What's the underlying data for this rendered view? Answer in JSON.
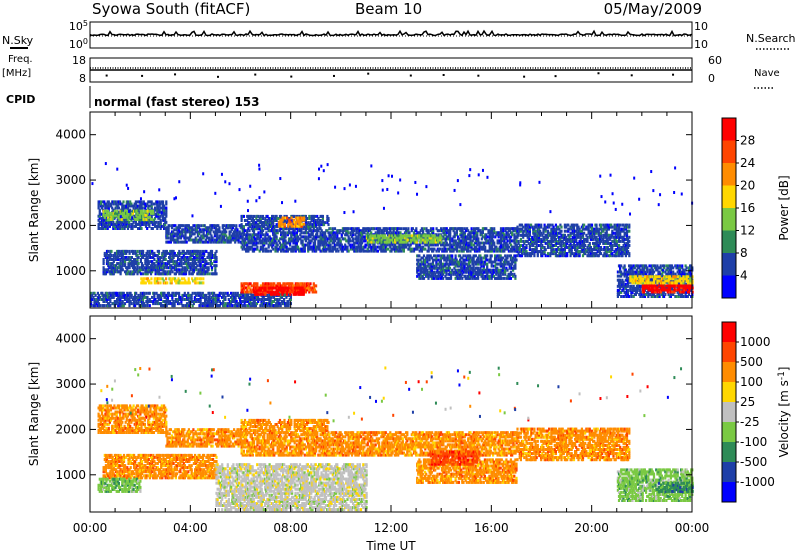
{
  "header": {
    "station": "Syowa South (fitACF)",
    "beam": "Beam 10",
    "date": "05/May/2009"
  },
  "status_panels": {
    "nsky": {
      "label": "N.Sky",
      "ticks": [
        "10^5",
        "10^0"
      ]
    },
    "nsearch": {
      "label": "N.Search",
      "ticks": [
        "10^5",
        "10^0"
      ]
    },
    "freq": {
      "label_line1": "Freq.",
      "label_line2": "[MHz]",
      "ticks": [
        "18",
        "8"
      ]
    },
    "nave": {
      "label": "Nave",
      "ticks": [
        "60",
        "0"
      ]
    },
    "cpid": {
      "label": "CPID",
      "text": "normal (fast stereo) 153"
    }
  },
  "chart_data": [
    {
      "type": "heatmap",
      "panel": "power",
      "ylabel": "Slant Range [km]",
      "xlabel": "",
      "ylim": [
        180,
        4500
      ],
      "yticks": [
        1000,
        2000,
        3000,
        4000
      ],
      "xticks": [
        "00:00",
        "04:00",
        "08:00",
        "12:00",
        "16:00",
        "20:00",
        "00:00"
      ],
      "colorbar": {
        "label": "Power [dB]",
        "ticks": [
          "4",
          "8",
          "12",
          "16",
          "20",
          "24",
          "28"
        ],
        "colors": [
          "#0000ff",
          "#1e3fa8",
          "#2e8b57",
          "#7ac943",
          "#ffd700",
          "#ff8c00",
          "#ff4500",
          "#ff0000"
        ]
      },
      "bands": [
        {
          "t0": 0.3,
          "t1": 3.0,
          "r0": 1900,
          "r1": 2500,
          "level": 1
        },
        {
          "t0": 0.5,
          "t1": 5.0,
          "r0": 900,
          "r1": 1400,
          "level": 1
        },
        {
          "t0": 3.0,
          "t1": 6.0,
          "r0": 1600,
          "r1": 2000,
          "level": 1
        },
        {
          "t0": 6.0,
          "t1": 9.5,
          "r0": 1400,
          "r1": 2200,
          "level": 1
        },
        {
          "t0": 9.5,
          "t1": 17.0,
          "r0": 1400,
          "r1": 1900,
          "level": 1
        },
        {
          "t0": 13.0,
          "t1": 17.0,
          "r0": 800,
          "r1": 1300,
          "level": 1
        },
        {
          "t0": 17.0,
          "t1": 21.5,
          "r0": 1300,
          "r1": 2000,
          "level": 1
        },
        {
          "t0": 21.0,
          "t1": 24.0,
          "r0": 400,
          "r1": 1100,
          "level": 1
        },
        {
          "t0": 0.0,
          "t1": 8.0,
          "r0": 200,
          "r1": 500,
          "level": 1
        },
        {
          "t0": 0.5,
          "t1": 2.5,
          "r0": 2100,
          "r1": 2300,
          "level": 3
        },
        {
          "t0": 2.0,
          "t1": 4.5,
          "r0": 700,
          "r1": 800,
          "level": 4
        },
        {
          "t0": 6.0,
          "t1": 9.0,
          "r0": 500,
          "r1": 700,
          "level": 6
        },
        {
          "t0": 6.5,
          "t1": 8.5,
          "r0": 450,
          "r1": 600,
          "level": 7
        },
        {
          "t0": 7.5,
          "t1": 8.5,
          "r0": 1950,
          "r1": 2150,
          "level": 5
        },
        {
          "t0": 11.0,
          "t1": 14.0,
          "r0": 1600,
          "r1": 1750,
          "level": 3
        },
        {
          "t0": 22.0,
          "t1": 24.0,
          "r0": 500,
          "r1": 650,
          "level": 7
        },
        {
          "t0": 21.5,
          "t1": 24.0,
          "r0": 700,
          "r1": 850,
          "level": 4
        }
      ]
    },
    {
      "type": "heatmap",
      "panel": "velocity",
      "ylabel": "Slant Range [km]",
      "xlabel": "Time UT",
      "ylim": [
        180,
        4500
      ],
      "yticks": [
        1000,
        2000,
        3000,
        4000
      ],
      "xticks": [
        "00:00",
        "04:00",
        "08:00",
        "12:00",
        "16:00",
        "20:00",
        "00:00"
      ],
      "colorbar": {
        "label": "Velocity [m s^-1]",
        "ticks": [
          "1000",
          "500",
          "100",
          "25",
          "-25",
          "-100",
          "-500",
          "-1000"
        ],
        "colors": [
          "#0000ff",
          "#1e3fa8",
          "#2e8b57",
          "#7ac943",
          "#c0c0c0",
          "#ffd700",
          "#ff8c00",
          "#ff4500",
          "#ff0000"
        ]
      },
      "bands": [
        {
          "t0": 0.3,
          "t1": 3.0,
          "r0": 1900,
          "r1": 2500,
          "level": 6
        },
        {
          "t0": 0.5,
          "t1": 5.0,
          "r0": 900,
          "r1": 1400,
          "level": 6
        },
        {
          "t0": 0.3,
          "t1": 2.0,
          "r0": 600,
          "r1": 900,
          "level": 3
        },
        {
          "t0": 3.0,
          "t1": 6.0,
          "r0": 1600,
          "r1": 2000,
          "level": 6
        },
        {
          "t0": 6.0,
          "t1": 9.5,
          "r0": 1400,
          "r1": 2200,
          "level": 6
        },
        {
          "t0": 5.0,
          "t1": 11.0,
          "r0": 200,
          "r1": 1200,
          "level": 4
        },
        {
          "t0": 9.5,
          "t1": 17.0,
          "r0": 1400,
          "r1": 1900,
          "level": 6
        },
        {
          "t0": 13.0,
          "t1": 17.0,
          "r0": 800,
          "r1": 1300,
          "level": 6
        },
        {
          "t0": 17.0,
          "t1": 21.5,
          "r0": 1300,
          "r1": 2000,
          "level": 6
        },
        {
          "t0": 21.0,
          "t1": 24.0,
          "r0": 400,
          "r1": 1100,
          "level": 3
        },
        {
          "t0": 13.5,
          "t1": 15.5,
          "r0": 1200,
          "r1": 1500,
          "level": 7
        },
        {
          "t0": 22.5,
          "t1": 24.0,
          "r0": 600,
          "r1": 800,
          "level": 2
        }
      ]
    }
  ]
}
